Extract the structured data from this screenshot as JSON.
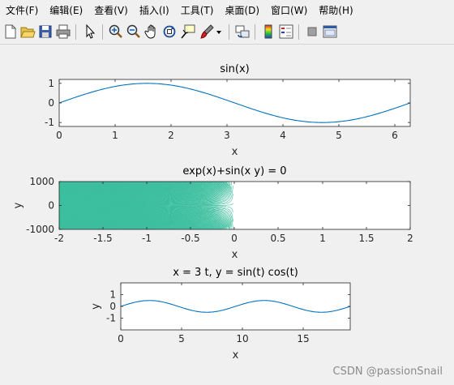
{
  "menus": [
    "文件(F)",
    "编辑(E)",
    "查看(V)",
    "插入(I)",
    "工具(T)",
    "桌面(D)",
    "窗口(W)",
    "帮助(H)"
  ],
  "toolbar_icons": [
    "new-file-icon",
    "open-folder-icon",
    "save-icon",
    "print-icon",
    "pointer-icon",
    "zoom-in-icon",
    "zoom-out-icon",
    "pan-hand-icon",
    "rotate-3d-icon",
    "data-cursor-icon",
    "brush-icon",
    "brush-dropdown-icon",
    "link-plot-icon",
    "colorbar-icon",
    "legend-icon",
    "hide-plot-tools-icon",
    "show-plot-tools-icon"
  ],
  "colors": {
    "line": "#0072bd",
    "contour": "#3dbf9f",
    "background": "#f0f0f0",
    "axes_bg": "#ffffff"
  },
  "plots": [
    {
      "title": "sin(x)",
      "xlabel": "x",
      "ylabel": "",
      "xticks": [
        "0",
        "1",
        "2",
        "3",
        "4",
        "5",
        "6"
      ],
      "yticks": [
        "1",
        "0",
        "-1"
      ]
    },
    {
      "title": "exp(x)+sin(x y) = 0",
      "xlabel": "x",
      "ylabel": "y",
      "xticks": [
        "-2",
        "-1.5",
        "-1",
        "-0.5",
        "0",
        "0.5",
        "1",
        "1.5",
        "2"
      ],
      "yticks": [
        "1000",
        "0",
        "-1000"
      ]
    },
    {
      "title": "x = 3 t, y = sin(t) cos(t)",
      "xlabel": "x",
      "ylabel": "y",
      "xticks": [
        "0",
        "5",
        "10",
        "15"
      ],
      "yticks": [
        "1",
        "0",
        "-1"
      ]
    }
  ],
  "chart_data": [
    {
      "type": "line",
      "title": "sin(x)",
      "xlabel": "x",
      "ylabel": "",
      "xlim": [
        0,
        6.2832
      ],
      "ylim": [
        -1.2,
        1.2
      ],
      "function": "sin(x)",
      "series": [
        {
          "x": [
            0,
            0.785,
            1.571,
            2.356,
            3.142,
            3.927,
            4.712,
            5.498,
            6.283
          ],
          "y": [
            0,
            0.707,
            1,
            0.707,
            0,
            -0.707,
            -1,
            -0.707,
            0
          ]
        }
      ]
    },
    {
      "type": "line",
      "title": "exp(x)+sin(x y) = 0",
      "xlabel": "x",
      "ylabel": "y",
      "xlim": [
        -2,
        2
      ],
      "ylim": [
        -1000,
        1000
      ],
      "function": "exp(x)+sin(x*y)=0",
      "note_region_x": [
        -2,
        0
      ]
    },
    {
      "type": "line",
      "title": "x = 3 t, y = sin(t) cos(t)",
      "xlabel": "x",
      "ylabel": "y",
      "xlim": [
        0,
        18.85
      ],
      "ylim": [
        -2,
        2
      ],
      "function": "x=3t, y=sin(t)cos(t)",
      "series": [
        {
          "x": [
            0,
            2.356,
            4.712,
            7.069,
            9.425,
            11.781,
            14.137,
            16.493,
            18.85
          ],
          "y": [
            0,
            0.5,
            0,
            -0.5,
            0,
            0.5,
            0,
            -0.5,
            0
          ]
        }
      ]
    }
  ],
  "watermark": "CSDN @passionSnail"
}
